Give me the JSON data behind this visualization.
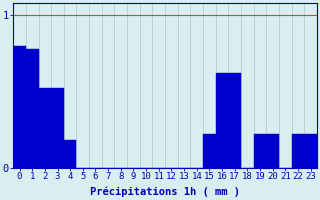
{
  "hours": [
    0,
    1,
    2,
    3,
    4,
    5,
    6,
    7,
    8,
    9,
    10,
    11,
    12,
    13,
    14,
    15,
    16,
    17,
    18,
    19,
    20,
    21,
    22,
    23
  ],
  "values": [
    0.8,
    0.78,
    0.52,
    0.52,
    0.18,
    0.0,
    0.0,
    0.0,
    0.0,
    0.0,
    0.0,
    0.0,
    0.0,
    0.0,
    0.0,
    0.22,
    0.62,
    0.62,
    0.0,
    0.22,
    0.22,
    0.0,
    0.22,
    0.22
  ],
  "bar_color": "#0000cc",
  "bar_edge_color": "#0000cc",
  "background_color": "#d8eef0",
  "xgrid_color": "#b8cfd4",
  "ygrid_color": "#cc4444",
  "axis_color": "#0000bb",
  "tick_color": "#0000bb",
  "xlabel": "Précipitations 1h ( mm )",
  "ylim": [
    0,
    1.08
  ],
  "yticks": [
    0,
    1
  ],
  "xlim": [
    -0.5,
    23.5
  ],
  "xlabel_fontsize": 7.5,
  "tick_fontsize": 6.5
}
